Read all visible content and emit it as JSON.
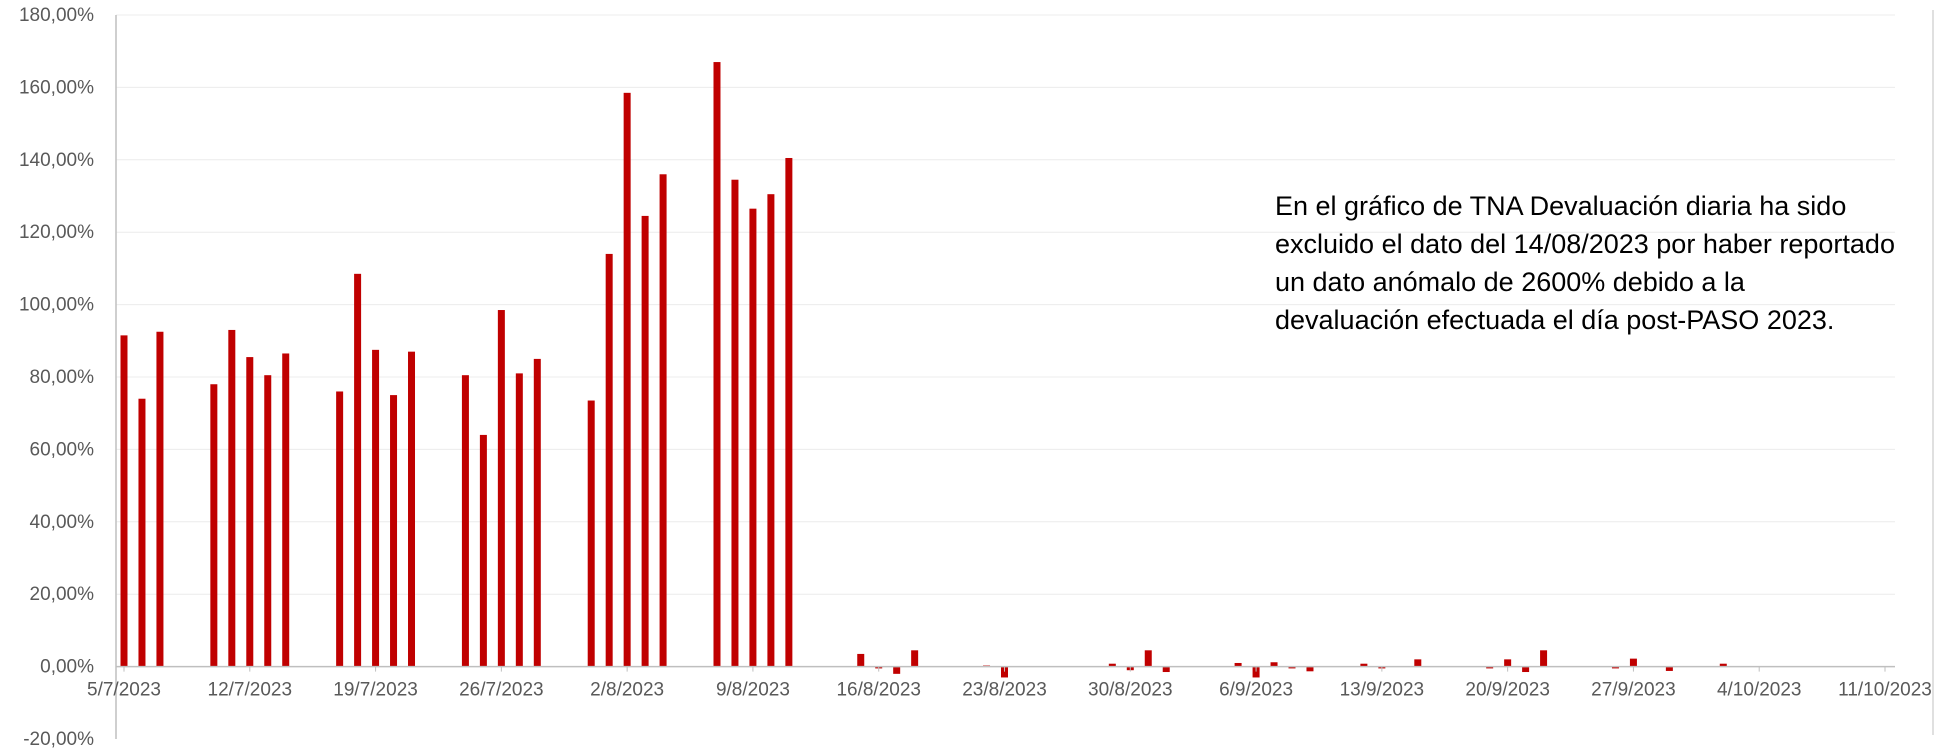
{
  "chart_data": {
    "type": "bar",
    "title": "",
    "xlabel": "",
    "ylabel": "",
    "ylim": [
      -0.2,
      1.8
    ],
    "y_ticks": [
      {
        "value": 1.8,
        "label": "180,00%"
      },
      {
        "value": 1.6,
        "label": "160,00%"
      },
      {
        "value": 1.4,
        "label": "140,00%"
      },
      {
        "value": 1.2,
        "label": "120,00%"
      },
      {
        "value": 1.0,
        "label": "100,00%"
      },
      {
        "value": 0.8,
        "label": "80,00%"
      },
      {
        "value": 0.6,
        "label": "60,00%"
      },
      {
        "value": 0.4,
        "label": "40,00%"
      },
      {
        "value": 0.2,
        "label": "20,00%"
      },
      {
        "value": 0.0,
        "label": "0,00%"
      },
      {
        "value": -0.2,
        "label": "-20,00%"
      }
    ],
    "x_ticks": [
      {
        "date": "2023-07-05",
        "label": "5/7/2023"
      },
      {
        "date": "2023-07-12",
        "label": "12/7/2023"
      },
      {
        "date": "2023-07-19",
        "label": "19/7/2023"
      },
      {
        "date": "2023-07-26",
        "label": "26/7/2023"
      },
      {
        "date": "2023-08-02",
        "label": "2/8/2023"
      },
      {
        "date": "2023-08-09",
        "label": "9/8/2023"
      },
      {
        "date": "2023-08-16",
        "label": "16/8/2023"
      },
      {
        "date": "2023-08-23",
        "label": "23/8/2023"
      },
      {
        "date": "2023-08-30",
        "label": "30/8/2023"
      },
      {
        "date": "2023-09-06",
        "label": "6/9/2023"
      },
      {
        "date": "2023-09-13",
        "label": "13/9/2023"
      },
      {
        "date": "2023-09-20",
        "label": "20/9/2023"
      },
      {
        "date": "2023-09-27",
        "label": "27/9/2023"
      },
      {
        "date": "2023-10-04",
        "label": "4/10/2023"
      },
      {
        "date": "2023-10-11",
        "label": "11/10/2023"
      }
    ],
    "x_range": [
      "2023-07-05",
      "2023-10-11"
    ],
    "grid": true,
    "bar_color": "#c00000",
    "series": [
      {
        "points": [
          {
            "x": "2023-07-05",
            "y": 0.915
          },
          {
            "x": "2023-07-06",
            "y": 0.74
          },
          {
            "x": "2023-07-07",
            "y": 0.925
          },
          {
            "x": "2023-07-10",
            "y": 0.78
          },
          {
            "x": "2023-07-11",
            "y": 0.93
          },
          {
            "x": "2023-07-12",
            "y": 0.855
          },
          {
            "x": "2023-07-13",
            "y": 0.805
          },
          {
            "x": "2023-07-14",
            "y": 0.865
          },
          {
            "x": "2023-07-17",
            "y": 0.76
          },
          {
            "x": "2023-07-18",
            "y": 1.085
          },
          {
            "x": "2023-07-19",
            "y": 0.875
          },
          {
            "x": "2023-07-20",
            "y": 0.75
          },
          {
            "x": "2023-07-21",
            "y": 0.87
          },
          {
            "x": "2023-07-24",
            "y": 0.805
          },
          {
            "x": "2023-07-25",
            "y": 0.64
          },
          {
            "x": "2023-07-26",
            "y": 0.985
          },
          {
            "x": "2023-07-27",
            "y": 0.81
          },
          {
            "x": "2023-07-28",
            "y": 0.85
          },
          {
            "x": "2023-07-31",
            "y": 0.735
          },
          {
            "x": "2023-08-01",
            "y": 1.14
          },
          {
            "x": "2023-08-02",
            "y": 1.585
          },
          {
            "x": "2023-08-03",
            "y": 1.245
          },
          {
            "x": "2023-08-04",
            "y": 1.36
          },
          {
            "x": "2023-08-07",
            "y": 1.67
          },
          {
            "x": "2023-08-08",
            "y": 1.345
          },
          {
            "x": "2023-08-09",
            "y": 1.265
          },
          {
            "x": "2023-08-10",
            "y": 1.305
          },
          {
            "x": "2023-08-11",
            "y": 1.405
          },
          {
            "x": "2023-08-15",
            "y": 0.035
          },
          {
            "x": "2023-08-16",
            "y": -0.005
          },
          {
            "x": "2023-08-17",
            "y": -0.02
          },
          {
            "x": "2023-08-18",
            "y": 0.045
          },
          {
            "x": "2023-08-22",
            "y": 0.003
          },
          {
            "x": "2023-08-23",
            "y": -0.03
          },
          {
            "x": "2023-08-29",
            "y": 0.008
          },
          {
            "x": "2023-08-30",
            "y": -0.01
          },
          {
            "x": "2023-08-31",
            "y": 0.045
          },
          {
            "x": "2023-09-01",
            "y": -0.015
          },
          {
            "x": "2023-09-05",
            "y": 0.01
          },
          {
            "x": "2023-09-06",
            "y": -0.03
          },
          {
            "x": "2023-09-07",
            "y": 0.012
          },
          {
            "x": "2023-09-08",
            "y": -0.005
          },
          {
            "x": "2023-09-09",
            "y": -0.013
          },
          {
            "x": "2023-09-12",
            "y": 0.008
          },
          {
            "x": "2023-09-13",
            "y": -0.005
          },
          {
            "x": "2023-09-15",
            "y": 0.02
          },
          {
            "x": "2023-09-19",
            "y": -0.005
          },
          {
            "x": "2023-09-20",
            "y": 0.02
          },
          {
            "x": "2023-09-21",
            "y": -0.015
          },
          {
            "x": "2023-09-22",
            "y": 0.045
          },
          {
            "x": "2023-09-26",
            "y": -0.005
          },
          {
            "x": "2023-09-27",
            "y": 0.022
          },
          {
            "x": "2023-09-29",
            "y": -0.012
          },
          {
            "x": "2023-10-02",
            "y": 0.008
          }
        ]
      }
    ],
    "annotation": "En el gráfico de TNA Devaluación diaria ha sido excluido el dato del 14/08/2023 por haber reportado un dato anómalo de 2600% debido a la devaluación efectuada el día post-PASO 2023."
  }
}
